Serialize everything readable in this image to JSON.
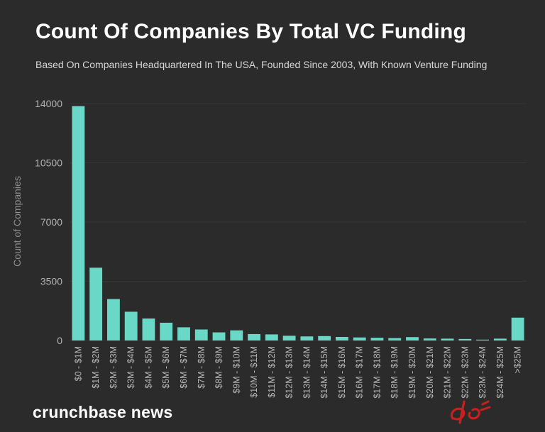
{
  "header": {
    "title": "Count Of Companies By Total VC Funding",
    "subtitle": "Based On Companies Headquartered In The USA, Founded Since 2003, With Known Venture Funding"
  },
  "footer": {
    "brand": "crunchbase news"
  },
  "colors": {
    "background": "#2b2b2b",
    "bar": "#6ad8c6",
    "axis_text": "#b3b3b3"
  },
  "chart_data": {
    "type": "bar",
    "title": "Count Of Companies By Total VC Funding",
    "subtitle": "Based On Companies Headquartered In The USA, Founded Since 2003, With Known Venture Funding",
    "xlabel": "",
    "ylabel": "Count of Companies",
    "ylim": [
      0,
      14000
    ],
    "yticks": [
      0,
      3500,
      7000,
      10500,
      14000
    ],
    "grid": true,
    "categories": [
      "$0 - $1M",
      "$1M - $2M",
      "$2M - $3M",
      "$3M - $4M",
      "$4M - $5M",
      "$5M - $6M",
      "$6M - $7M",
      "$7M - $8M",
      "$8M - $9M",
      "$9M - $10M",
      "$10M - $11M",
      "$11M - $12M",
      "$12M - $13M",
      "$13M - $14M",
      "$14M - $15M",
      "$15M - $16M",
      "$16M - $17M",
      "$17M - $18M",
      "$18M - $19M",
      "$19M - $20M",
      "$20M - $21M",
      "$21M - $22M",
      "$22M - $23M",
      "$23M - $24M",
      "$24M - $25M",
      ">$25M"
    ],
    "values": [
      13850,
      4300,
      2450,
      1700,
      1300,
      1050,
      780,
      650,
      480,
      600,
      380,
      360,
      280,
      240,
      260,
      210,
      180,
      160,
      140,
      200,
      120,
      110,
      90,
      50,
      110,
      1350
    ]
  }
}
